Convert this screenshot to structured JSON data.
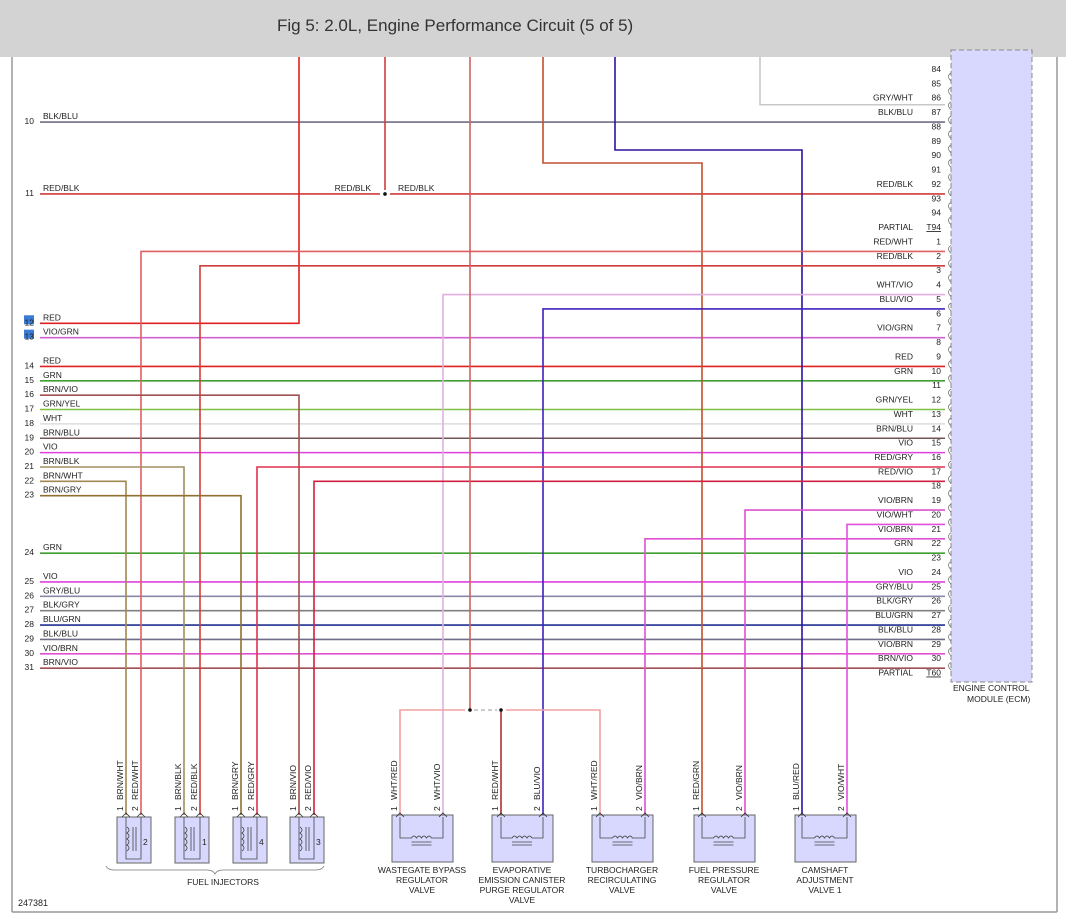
{
  "header": {
    "title": "Fig 5: 2.0L, Engine Performance Circuit (5 of 5)"
  },
  "figure_id": "247381",
  "wire_colors": {
    "BLK/BLU": "#6e6e86",
    "RED/BLK": "#d03c3c",
    "RED": "#e02020",
    "VIO/GRN": "#d060d0",
    "GRN": "#3f9f30",
    "BRN/VIO": "#a05050",
    "GRN/YEL": "#80c040",
    "WHT": "#dddddd",
    "BRN/BLU": "#705555",
    "VIO": "#e040e0",
    "BRN/BLK": "#a09060",
    "BRN/WHT": "#a08850",
    "BRN/GRY": "#907030",
    "GRY/BLU": "#8888a8",
    "BLK/GRY": "#808080",
    "BLU/GRN": "#203090",
    "VIO/BRN": "#e050d0",
    "RED/WHT": "#e06060",
    "WHT/VIO": "#e0b0e0",
    "BLU/VIO": "#4020c0",
    "RED/GRY": "#e03050",
    "RED/VIO": "#d02040",
    "VIO/WHT": "#e050e0",
    "RED/GRN": "#c05030",
    "BLU/RED": "#3010a0",
    "GRY/WHT": "#c8c8c8",
    "WHT/RED": "#f0a0a0"
  },
  "ecm": {
    "name_lines": [
      "ENGINE CONTROL",
      "MODULE (ECM)"
    ],
    "fill": "#d8d8ff",
    "pins": [
      {
        "num": "84",
        "wire": ""
      },
      {
        "num": "85",
        "wire": ""
      },
      {
        "num": "86",
        "wire": "GRY/WHT"
      },
      {
        "num": "87",
        "wire": "BLK/BLU"
      },
      {
        "num": "88",
        "wire": ""
      },
      {
        "num": "89",
        "wire": ""
      },
      {
        "num": "90",
        "wire": ""
      },
      {
        "num": "91",
        "wire": ""
      },
      {
        "num": "92",
        "wire": "RED/BLK"
      },
      {
        "num": "93",
        "wire": ""
      },
      {
        "num": "94",
        "wire": ""
      },
      {
        "num": "T94",
        "wire": "PARTIAL"
      },
      {
        "num": "1",
        "wire": "RED/WHT"
      },
      {
        "num": "2",
        "wire": "RED/BLK"
      },
      {
        "num": "3",
        "wire": ""
      },
      {
        "num": "4",
        "wire": "WHT/VIO"
      },
      {
        "num": "5",
        "wire": "BLU/VIO"
      },
      {
        "num": "6",
        "wire": ""
      },
      {
        "num": "7",
        "wire": "VIO/GRN"
      },
      {
        "num": "8",
        "wire": ""
      },
      {
        "num": "9",
        "wire": "RED"
      },
      {
        "num": "10",
        "wire": "GRN"
      },
      {
        "num": "11",
        "wire": ""
      },
      {
        "num": "12",
        "wire": "GRN/YEL"
      },
      {
        "num": "13",
        "wire": "WHT"
      },
      {
        "num": "14",
        "wire": "BRN/BLU"
      },
      {
        "num": "15",
        "wire": "VIO"
      },
      {
        "num": "16",
        "wire": "RED/GRY"
      },
      {
        "num": "17",
        "wire": "RED/VIO"
      },
      {
        "num": "18",
        "wire": ""
      },
      {
        "num": "19",
        "wire": "VIO/BRN"
      },
      {
        "num": "20",
        "wire": "VIO/WHT"
      },
      {
        "num": "21",
        "wire": "VIO/BRN"
      },
      {
        "num": "22",
        "wire": "GRN"
      },
      {
        "num": "23",
        "wire": ""
      },
      {
        "num": "24",
        "wire": "VIO"
      },
      {
        "num": "25",
        "wire": "GRY/BLU"
      },
      {
        "num": "26",
        "wire": "BLK/GRY"
      },
      {
        "num": "27",
        "wire": "BLU/GRN"
      },
      {
        "num": "28",
        "wire": "BLK/BLU"
      },
      {
        "num": "29",
        "wire": "VIO/BRN"
      },
      {
        "num": "30",
        "wire": "BRN/VIO"
      },
      {
        "num": "T60",
        "wire": "PARTIAL"
      }
    ]
  },
  "left_refs": [
    {
      "num": "10",
      "wire": "BLK/BLU",
      "highlight": false
    },
    {
      "num": "11",
      "wire": "RED/BLK",
      "highlight": false
    },
    {
      "num": "12",
      "wire": "RED",
      "highlight": true
    },
    {
      "num": "13",
      "wire": "VIO/GRN",
      "highlight": true
    },
    {
      "num": "14",
      "wire": "RED",
      "highlight": false
    },
    {
      "num": "15",
      "wire": "GRN",
      "highlight": false
    },
    {
      "num": "16",
      "wire": "BRN/VIO",
      "highlight": false
    },
    {
      "num": "17",
      "wire": "GRN/YEL",
      "highlight": false
    },
    {
      "num": "18",
      "wire": "WHT",
      "highlight": false
    },
    {
      "num": "19",
      "wire": "BRN/BLU",
      "highlight": false
    },
    {
      "num": "20",
      "wire": "VIO",
      "highlight": false
    },
    {
      "num": "21",
      "wire": "BRN/BLK",
      "highlight": false
    },
    {
      "num": "22",
      "wire": "BRN/WHT",
      "highlight": false
    },
    {
      "num": "23",
      "wire": "BRN/GRY",
      "highlight": false
    },
    {
      "num": "24",
      "wire": "GRN",
      "highlight": false
    },
    {
      "num": "25",
      "wire": "VIO",
      "highlight": false
    },
    {
      "num": "26",
      "wire": "GRY/BLU",
      "highlight": false
    },
    {
      "num": "27",
      "wire": "BLK/GRY",
      "highlight": false
    },
    {
      "num": "28",
      "wire": "BLU/GRN",
      "highlight": false
    },
    {
      "num": "29",
      "wire": "BLK/BLU",
      "highlight": false
    },
    {
      "num": "30",
      "wire": "VIO/BRN",
      "highlight": false
    },
    {
      "num": "31",
      "wire": "BRN/VIO",
      "highlight": false
    }
  ],
  "splice_labels": [
    "RED/BLK",
    "RED/BLK"
  ],
  "injectors": {
    "group_label": "FUEL INJECTORS",
    "items": [
      {
        "index": "2",
        "pins": [
          {
            "num": "1",
            "wire": "BRN/WHT"
          },
          {
            "num": "2",
            "wire": "RED/WHT"
          }
        ]
      },
      {
        "index": "1",
        "pins": [
          {
            "num": "1",
            "wire": "BRN/BLK"
          },
          {
            "num": "2",
            "wire": "RED/BLK"
          }
        ]
      },
      {
        "index": "4",
        "pins": [
          {
            "num": "1",
            "wire": "BRN/GRY"
          },
          {
            "num": "2",
            "wire": "RED/GRY"
          }
        ]
      },
      {
        "index": "3",
        "pins": [
          {
            "num": "1",
            "wire": "BRN/VIO"
          },
          {
            "num": "2",
            "wire": "RED/VIO"
          }
        ]
      }
    ]
  },
  "valves": [
    {
      "name_lines": [
        "WASTEGATE BYPASS",
        "REGULATOR",
        "VALVE"
      ],
      "pins": [
        {
          "num": "1",
          "wire": "WHT/RED"
        },
        {
          "num": "2",
          "wire": "WHT/VIO"
        }
      ]
    },
    {
      "name_lines": [
        "EVAPORATIVE",
        "EMISSION CANISTER",
        "PURGE REGULATOR",
        "VALVE"
      ],
      "pins": [
        {
          "num": "1",
          "wire": "RED/WHT"
        },
        {
          "num": "2",
          "wire": "BLU/VIO"
        }
      ]
    },
    {
      "name_lines": [
        "TURBOCHARGER",
        "RECIRCULATING",
        "VALVE"
      ],
      "pins": [
        {
          "num": "1",
          "wire": "WHT/RED"
        },
        {
          "num": "2",
          "wire": "VIO/BRN"
        }
      ]
    },
    {
      "name_lines": [
        "FUEL PRESSURE",
        "REGULATOR",
        "VALVE"
      ],
      "pins": [
        {
          "num": "1",
          "wire": "RED/GRN"
        },
        {
          "num": "2",
          "wire": "VIO/BRN"
        }
      ]
    },
    {
      "name_lines": [
        "CAMSHAFT",
        "ADJUSTMENT",
        "VALVE 1"
      ],
      "pins": [
        {
          "num": "1",
          "wire": "BLU/RED"
        },
        {
          "num": "2",
          "wire": "VIO/WHT"
        }
      ]
    }
  ]
}
